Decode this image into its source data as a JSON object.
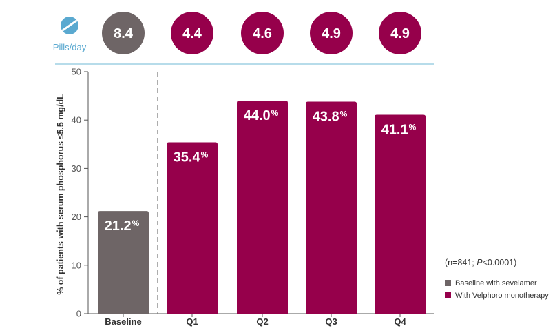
{
  "colors": {
    "baseline": "#6e6566",
    "velphoro": "#96004b",
    "accent": "#5aa9d0",
    "axis": "#555555"
  },
  "header": {
    "pills_label": "Pills/day",
    "pill_icon": "pill-icon",
    "pills_per_day": [
      "8.4",
      "4.4",
      "4.6",
      "4.9",
      "4.9"
    ]
  },
  "stats_note": {
    "prefix": "(n=841; ",
    "p": "P",
    "suffix": "<0.0001)"
  },
  "legend": [
    {
      "label": "Baseline with sevelamer",
      "color": "#6e6566"
    },
    {
      "label": "With Velphoro monotherapy",
      "color": "#96004b"
    }
  ],
  "chart_data": {
    "type": "bar",
    "title": "",
    "xlabel": "",
    "ylabel": "% of patients with serum phosphorus ≤5.5 mg/dL",
    "ylim": [
      0,
      50
    ],
    "yticks": [
      0,
      10,
      20,
      30,
      40,
      50
    ],
    "categories": [
      "Baseline",
      "Q1",
      "Q2",
      "Q3",
      "Q4"
    ],
    "values": [
      21.2,
      35.4,
      44.0,
      43.8,
      41.1
    ],
    "value_labels": [
      "21.2",
      "35.4",
      "44.0",
      "43.8",
      "41.1"
    ],
    "unit": "%",
    "groups": [
      "baseline",
      "velphoro",
      "velphoro",
      "velphoro",
      "velphoro"
    ]
  }
}
